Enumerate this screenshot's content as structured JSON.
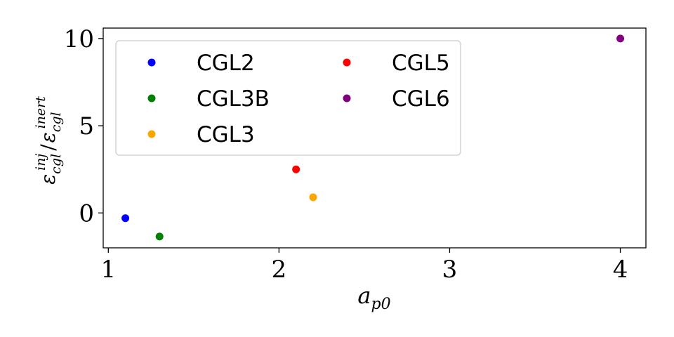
{
  "chart_data": {
    "type": "scatter",
    "xlabel": "a_p0",
    "ylabel": "ε_cgl^inj / ε_cgl^inert",
    "xlim": [
      0.97,
      4.15
    ],
    "ylim": [
      -2.0,
      10.6
    ],
    "xticks": [
      1,
      2,
      3,
      4
    ],
    "yticks": [
      0,
      5,
      10
    ],
    "legend": {
      "placement": "top-left",
      "columns": 2
    },
    "grid": false,
    "series": [
      {
        "name": "CGL2",
        "color": "#0000ff",
        "points": [
          {
            "x": 1.1,
            "y": -0.3
          }
        ]
      },
      {
        "name": "CGL3B",
        "color": "#008000",
        "points": [
          {
            "x": 1.3,
            "y": -1.35
          }
        ]
      },
      {
        "name": "CGL3",
        "color": "#ffa500",
        "points": [
          {
            "x": 2.2,
            "y": 0.9
          }
        ]
      },
      {
        "name": "CGL5",
        "color": "#ff0000",
        "points": [
          {
            "x": 2.1,
            "y": 2.5
          }
        ]
      },
      {
        "name": "CGL6",
        "color": "#800080",
        "points": [
          {
            "x": 4.0,
            "y": 10.0
          }
        ]
      }
    ]
  }
}
